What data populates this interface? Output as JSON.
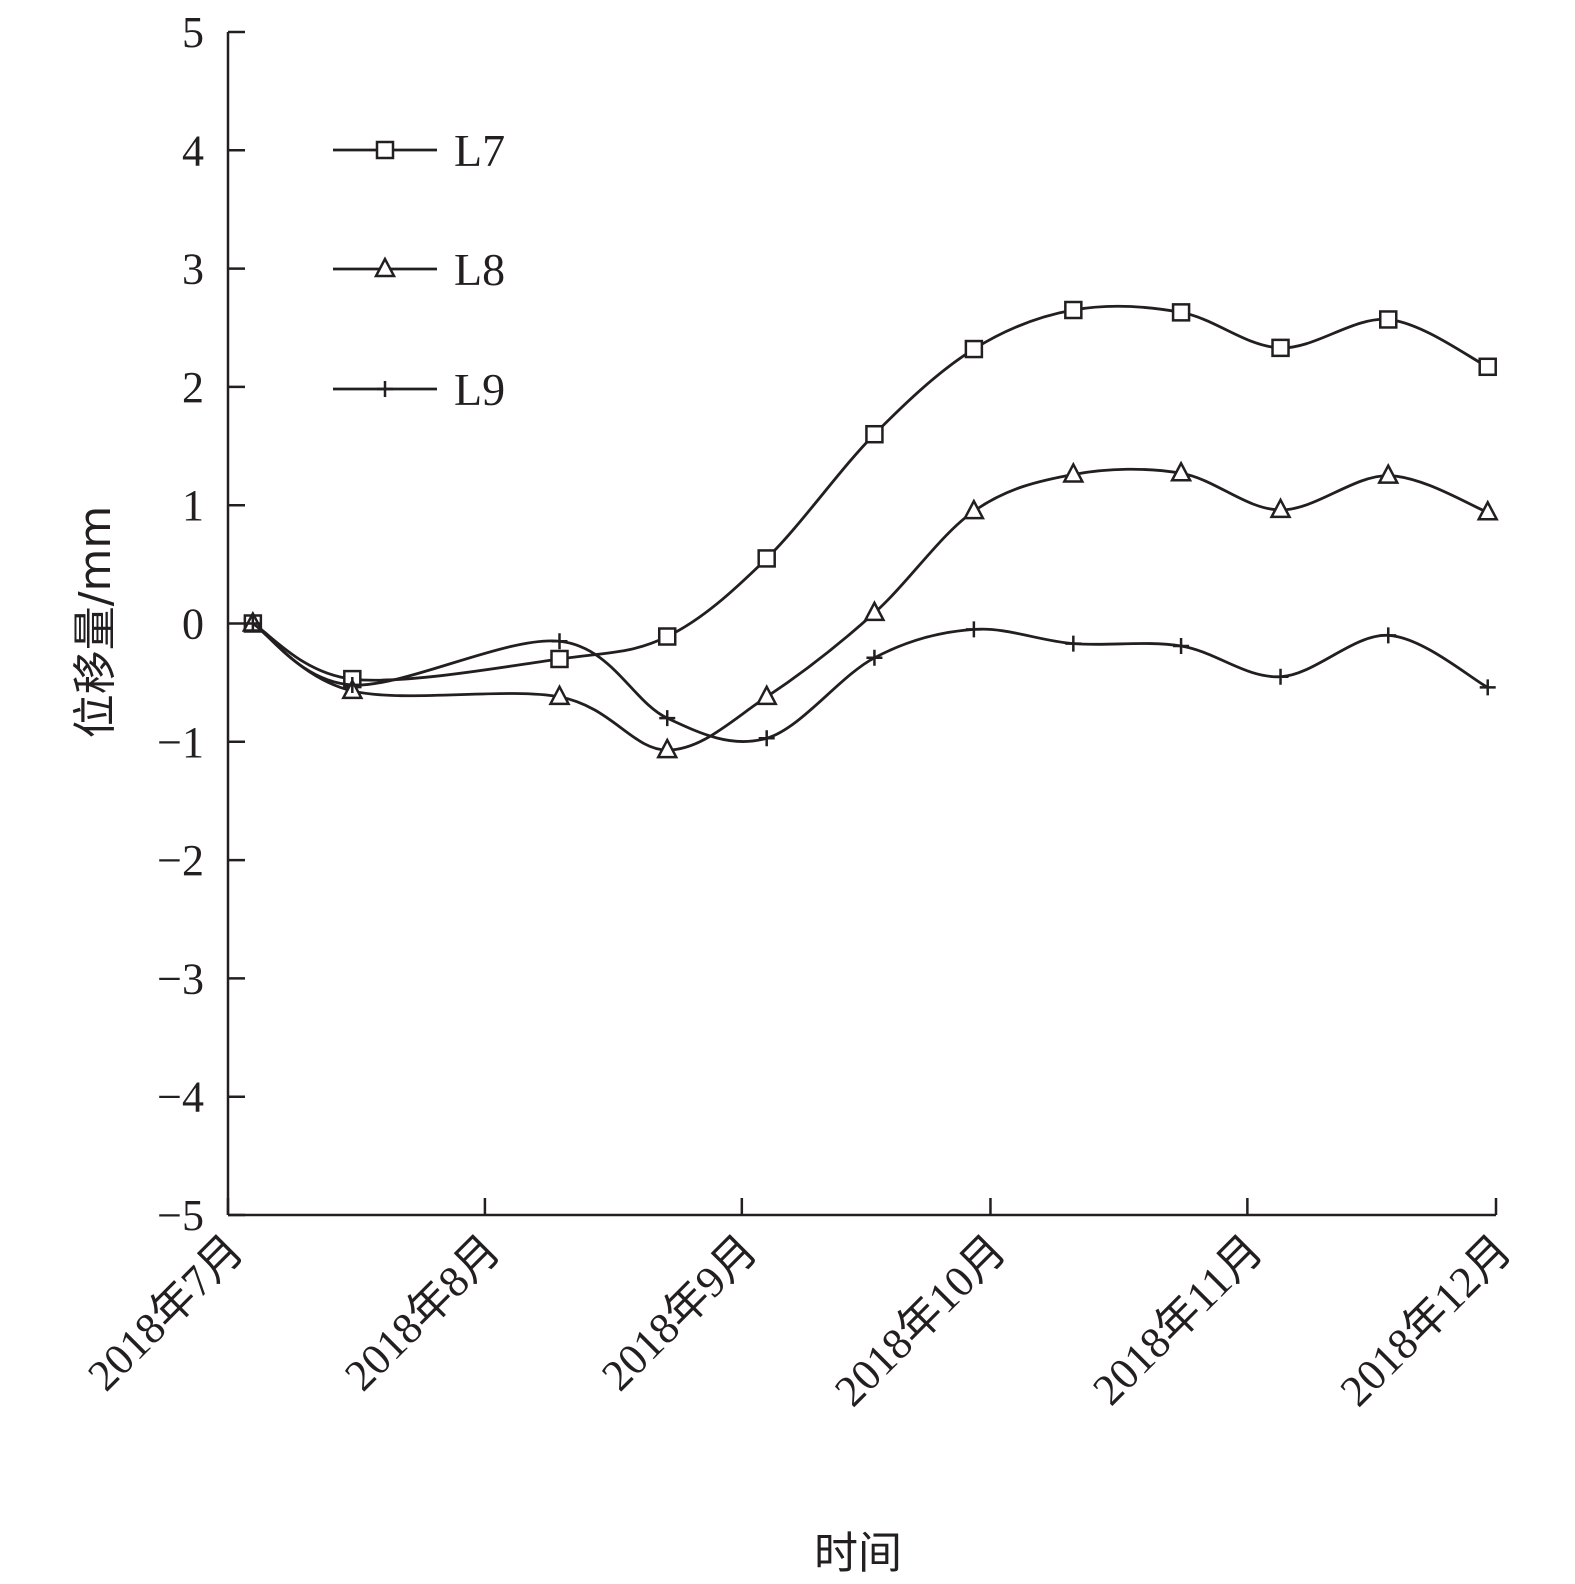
{
  "chart_data": {
    "type": "line",
    "xlabel": "时间",
    "ylabel": "位移量/mm",
    "ylim": [
      -5,
      5
    ],
    "yticks": [
      5,
      4,
      3,
      2,
      1,
      0,
      -1,
      -2,
      -3,
      -4,
      -5
    ],
    "ytick_labels": [
      "5",
      "4",
      "3",
      "2",
      "1",
      "0",
      "−1",
      "−2",
      "−3",
      "−4",
      "−5"
    ],
    "xlim": [
      "2018-07-01",
      "2018-12-01"
    ],
    "xticks": [
      "2018-07-01",
      "2018-08-01",
      "2018-09-01",
      "2018-10-01",
      "2018-11-01",
      "2018-12-01"
    ],
    "xtick_labels": [
      "2018年7月",
      "2018年8月",
      "2018年9月",
      "2018年10月",
      "2018年11月",
      "2018年12月"
    ],
    "grid": false,
    "legend_position": "top-left",
    "x": [
      "2018-07-04",
      "2018-07-16",
      "2018-07-29",
      "2018-08-10",
      "2018-08-23",
      "2018-09-04",
      "2018-09-17",
      "2018-09-29",
      "2018-10-11",
      "2018-10-24",
      "2018-11-05",
      "2018-11-18",
      "2018-11-30"
    ],
    "series": [
      {
        "name": "L7",
        "marker": "square",
        "values": [
          0.0,
          -0.47,
          null,
          -0.3,
          -0.11,
          0.55,
          1.6,
          2.32,
          2.65,
          2.63,
          2.33,
          2.57,
          2.17
        ]
      },
      {
        "name": "L8",
        "marker": "triangle",
        "values": [
          0.0,
          -0.57,
          null,
          -0.62,
          -1.07,
          -0.62,
          0.09,
          0.95,
          1.26,
          1.27,
          0.96,
          1.25,
          0.94
        ]
      },
      {
        "name": "L9",
        "marker": "plus",
        "values": [
          0.0,
          -0.52,
          null,
          -0.15,
          -0.8,
          -0.97,
          -0.29,
          -0.05,
          -0.17,
          -0.19,
          -0.45,
          -0.1,
          -0.54
        ]
      }
    ]
  }
}
